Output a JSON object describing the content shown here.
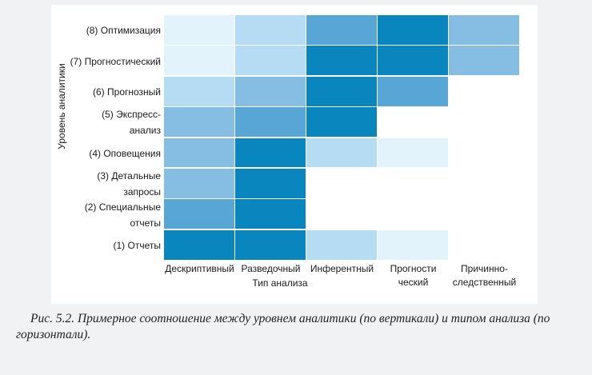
{
  "chart_data": {
    "type": "heatmap",
    "y_axis_label": "Уровень аналитики",
    "x_axis_label": "Тип анализа",
    "rows": [
      [
        "(8) Оптимизация"
      ],
      [
        "(7) Прогностический"
      ],
      [
        "(6) Прогнозный"
      ],
      [
        "(5) Экспресс-",
        "анализ"
      ],
      [
        "(4) Оповещения"
      ],
      [
        "(3) Детальные",
        "запросы"
      ],
      [
        "(2) Специальные",
        "отчеты"
      ],
      [
        "(1) Отчеты"
      ]
    ],
    "columns": [
      [
        "Дескриптивный"
      ],
      [
        "Разведочный"
      ],
      [
        "Инферентный"
      ],
      [
        "Прогности",
        "ческий"
      ],
      [
        "Причинно-",
        "следственный"
      ]
    ],
    "intensity_scale": [
      0,
      1,
      2,
      3,
      4,
      5
    ],
    "values": [
      [
        1,
        2,
        4,
        5,
        3
      ],
      [
        1,
        2,
        5,
        5,
        3
      ],
      [
        2,
        3,
        5,
        4,
        0
      ],
      [
        3,
        4,
        5,
        0,
        0
      ],
      [
        3,
        5,
        2,
        1,
        0
      ],
      [
        3,
        5,
        0,
        0,
        0
      ],
      [
        4,
        5,
        0,
        0,
        0
      ],
      [
        5,
        5,
        2,
        1,
        0
      ]
    ]
  },
  "palette": {
    "0": "#ffffff",
    "1": "#e3f3fc",
    "2": "#b5dcf2",
    "3": "#86bde2",
    "4": "#57a6d6",
    "5": "#0a86be"
  },
  "caption": "Рис. 5.2. Примерное соотношение между уровнем аналитики (по вертикали) и типом анализа (по горизонтали)."
}
